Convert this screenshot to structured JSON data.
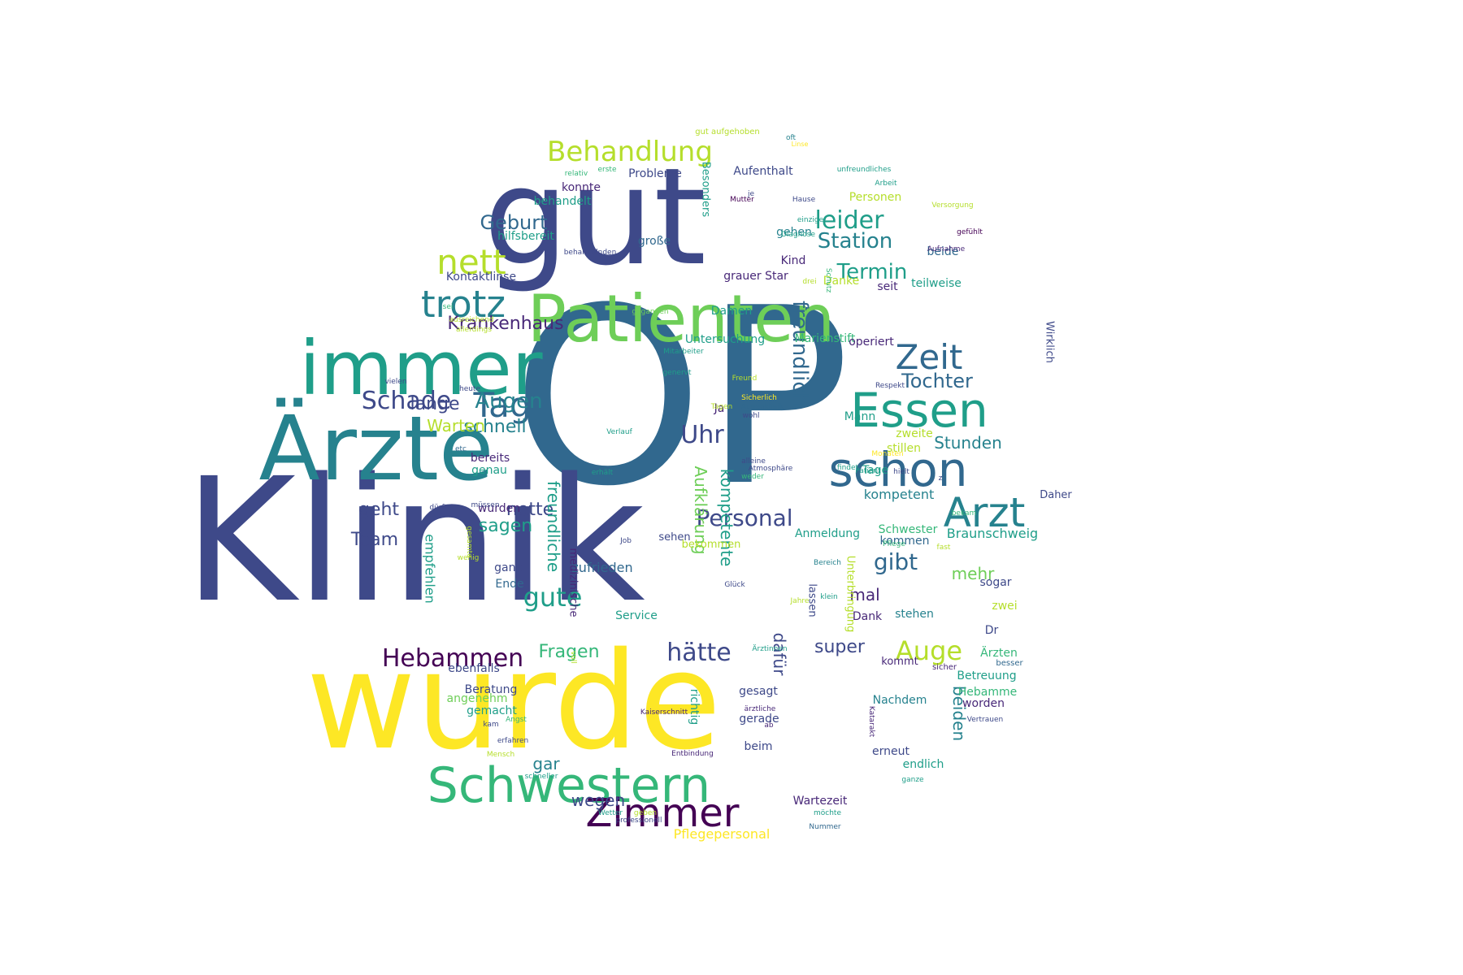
{
  "palette": {
    "d1": "#440154",
    "d2": "#482878",
    "d3": "#3e4989",
    "d4": "#31688e",
    "d5": "#26828e",
    "d6": "#1f9e89",
    "d7": "#35b779",
    "d8": "#6ece58",
    "d9": "#b5de2b",
    "d10": "#fde725"
  },
  "words": [
    {
      "text": "OP",
      "color": "d4"
    },
    {
      "text": "Klinik",
      "color": "d3"
    },
    {
      "text": "gut",
      "color": "d3"
    },
    {
      "text": "wurde",
      "color": "d10"
    },
    {
      "text": "Ärzte",
      "color": "d5"
    },
    {
      "text": "immer",
      "color": "d6"
    },
    {
      "text": "Patienten",
      "color": "d8"
    },
    {
      "text": "Schwestern",
      "color": "d7"
    },
    {
      "text": "schon",
      "color": "d4"
    },
    {
      "text": "Essen",
      "color": "d6"
    },
    {
      "text": "Arzt",
      "color": "d5"
    },
    {
      "text": "Zimmer",
      "color": "d1"
    },
    {
      "text": "trotz",
      "color": "d5"
    },
    {
      "text": "nett",
      "color": "d9"
    },
    {
      "text": "Zeit",
      "color": "d4"
    },
    {
      "text": "Tag",
      "color": "d4"
    },
    {
      "text": "Behandlung",
      "color": "d9"
    },
    {
      "text": "leider",
      "color": "d6"
    },
    {
      "text": "Hebammen",
      "color": "d1"
    },
    {
      "text": "Uhr",
      "color": "d3"
    },
    {
      "text": "Personal",
      "color": "d3"
    },
    {
      "text": "gute",
      "color": "d6"
    },
    {
      "text": "freundlich",
      "color": "d4"
    },
    {
      "text": "Station",
      "color": "d5"
    },
    {
      "text": "Termin",
      "color": "d6"
    },
    {
      "text": "Tochter",
      "color": "d4"
    },
    {
      "text": "Augen",
      "color": "d5"
    },
    {
      "text": "Auge",
      "color": "d9"
    },
    {
      "text": "hätte",
      "color": "d3"
    },
    {
      "text": "Geburt",
      "color": "d4"
    },
    {
      "text": "Krankenhaus",
      "color": "d2"
    },
    {
      "text": "nette",
      "color": "d3"
    },
    {
      "text": "lange",
      "color": "d3"
    },
    {
      "text": "schnell",
      "color": "d5"
    },
    {
      "text": "Fragen",
      "color": "d7"
    },
    {
      "text": "sagen",
      "color": "d6"
    },
    {
      "text": "Warten",
      "color": "d9"
    },
    {
      "text": "gibt",
      "color": "d4"
    },
    {
      "text": "geht",
      "color": "d3"
    },
    {
      "text": "Team",
      "color": "d3"
    },
    {
      "text": "Stunden",
      "color": "d5"
    },
    {
      "text": "Arzt",
      "color": "d5"
    },
    {
      "text": "mehr",
      "color": "d8"
    },
    {
      "text": "mal",
      "color": "d2"
    },
    {
      "text": "super",
      "color": "d3"
    },
    {
      "text": "Aufklärung",
      "color": "d8"
    },
    {
      "text": "freundliche",
      "color": "d6"
    },
    {
      "text": "kompetente",
      "color": "d6"
    },
    {
      "text": "beiden",
      "color": "d5"
    },
    {
      "text": "dafür",
      "color": "d3"
    },
    {
      "text": "zufrieden",
      "color": "d4"
    },
    {
      "text": "empfehlen",
      "color": "d6"
    },
    {
      "text": "Braunschweig",
      "color": "d6"
    },
    {
      "text": "gar",
      "color": "d5"
    },
    {
      "text": "wegen",
      "color": "d3"
    },
    {
      "text": "Pflegepersonal",
      "color": "d10"
    },
    {
      "text": "Wartezeit",
      "color": "d2"
    },
    {
      "text": "kompetent",
      "color": "d5"
    },
    {
      "text": "Marienstift",
      "color": "d7"
    },
    {
      "text": "Untersuchung",
      "color": "d6"
    },
    {
      "text": "operiert",
      "color": "d2"
    },
    {
      "text": "Kind",
      "color": "d2"
    },
    {
      "text": "grauer Star",
      "color": "d2"
    },
    {
      "text": "Damen",
      "color": "d6"
    },
    {
      "text": "seit",
      "color": "d2"
    },
    {
      "text": "teilweise",
      "color": "d6"
    },
    {
      "text": "beide",
      "color": "d4"
    },
    {
      "text": "Aufenthalt",
      "color": "d3"
    },
    {
      "text": "Probleme",
      "color": "d3"
    },
    {
      "text": "konnte",
      "color": "d2"
    },
    {
      "text": "behandelt",
      "color": "d6"
    },
    {
      "text": "hilfsbereit",
      "color": "d6"
    },
    {
      "text": "große",
      "color": "d4"
    },
    {
      "text": "Kontaktlinse",
      "color": "d3"
    },
    {
      "text": "gehen",
      "color": "d5"
    },
    {
      "text": "Personen",
      "color": "d9"
    },
    {
      "text": "Danke",
      "color": "d9"
    },
    {
      "text": "Mann",
      "color": "d6"
    },
    {
      "text": "Ja",
      "color": "d2"
    },
    {
      "text": "zweite",
      "color": "d9"
    },
    {
      "text": "stillen",
      "color": "d9"
    },
    {
      "text": "Tage",
      "color": "d6"
    },
    {
      "text": "bereits",
      "color": "d2"
    },
    {
      "text": "genau",
      "color": "d6"
    },
    {
      "text": "wurden",
      "color": "d2"
    },
    {
      "text": "ganz",
      "color": "d3"
    },
    {
      "text": "Ende",
      "color": "d4"
    },
    {
      "text": "Service",
      "color": "d6"
    },
    {
      "text": "Dank",
      "color": "d2"
    },
    {
      "text": "stehen",
      "color": "d5"
    },
    {
      "text": "sehen",
      "color": "d3"
    },
    {
      "text": "bekommen",
      "color": "d9"
    },
    {
      "text": "Anmeldung",
      "color": "d6"
    },
    {
      "text": "Schwester",
      "color": "d7"
    },
    {
      "text": "kommen",
      "color": "d4"
    },
    {
      "text": "sogar",
      "color": "d3"
    },
    {
      "text": "zwei",
      "color": "d9"
    },
    {
      "text": "Dr",
      "color": "d3"
    },
    {
      "text": "Ärzten",
      "color": "d7"
    },
    {
      "text": "besser",
      "color": "d4"
    },
    {
      "text": "Betreuung",
      "color": "d6"
    },
    {
      "text": "Hebamme",
      "color": "d7"
    },
    {
      "text": "worden",
      "color": "d2"
    },
    {
      "text": "sicher",
      "color": "d2"
    },
    {
      "text": "kommt",
      "color": "d2"
    },
    {
      "text": "endlich",
      "color": "d6"
    },
    {
      "text": "erneut",
      "color": "d3"
    },
    {
      "text": "Nachdem",
      "color": "d5"
    },
    {
      "text": "gesagt",
      "color": "d3"
    },
    {
      "text": "gerade",
      "color": "d3"
    },
    {
      "text": "beim",
      "color": "d3"
    },
    {
      "text": "richtig",
      "color": "d6"
    },
    {
      "text": "Beratung",
      "color": "d3"
    },
    {
      "text": "ebenfalls",
      "color": "d3"
    },
    {
      "text": "angenehm",
      "color": "d8"
    },
    {
      "text": "gemacht",
      "color": "d6"
    },
    {
      "text": "Daher",
      "color": "d3"
    },
    {
      "text": "medizinische",
      "color": "d2"
    },
    {
      "text": "lassen",
      "color": "d3"
    },
    {
      "text": "Unterbringung",
      "color": "d9"
    },
    {
      "text": "Besonders",
      "color": "d6"
    },
    {
      "text": "Wirklich",
      "color": "d3"
    },
    {
      "text": "gut aufgehoben",
      "color": "d9"
    },
    {
      "text": "oft",
      "color": "d5"
    },
    {
      "text": "Linse",
      "color": "d10"
    },
    {
      "text": "unfreundliches",
      "color": "d6"
    },
    {
      "text": "Arbeit",
      "color": "d6"
    },
    {
      "text": "Versorgung",
      "color": "d9"
    },
    {
      "text": "gefühlt",
      "color": "d1"
    },
    {
      "text": "relativ",
      "color": "d7"
    },
    {
      "text": "erste",
      "color": "d7"
    },
    {
      "text": "Mutter",
      "color": "d1"
    },
    {
      "text": "je",
      "color": "d3"
    },
    {
      "text": "Hause",
      "color": "d3"
    },
    {
      "text": "einzige",
      "color": "d6"
    },
    {
      "text": "Diagnose",
      "color": "d6"
    },
    {
      "text": "Aufnahme",
      "color": "d2"
    },
    {
      "text": "behandelnden",
      "color": "d3"
    },
    {
      "text": "drei",
      "color": "d9"
    },
    {
      "text": "Schutz",
      "color": "d7"
    },
    {
      "text": "sei",
      "color": "d7"
    },
    {
      "text": "gegangen",
      "color": "d8"
    },
    {
      "text": "ausreichend",
      "color": "d9"
    },
    {
      "text": "allerdings",
      "color": "d9"
    },
    {
      "text": "Mitarbeiter",
      "color": "d6"
    },
    {
      "text": "genervt",
      "color": "d6"
    },
    {
      "text": "vielen",
      "color": "d3"
    },
    {
      "text": "heute",
      "color": "d3"
    },
    {
      "text": "Freund",
      "color": "d9"
    },
    {
      "text": "Tagen",
      "color": "d9"
    },
    {
      "text": "Sicherlich",
      "color": "d10"
    },
    {
      "text": "Respekt",
      "color": "d3"
    },
    {
      "text": "Augenklinik",
      "color": "d4"
    },
    {
      "text": "wohl",
      "color": "d3"
    },
    {
      "text": "Verlauf",
      "color": "d6"
    },
    {
      "text": "alleine",
      "color": "d3"
    },
    {
      "text": "Atmosphäre",
      "color": "d3"
    },
    {
      "text": "weder",
      "color": "d7"
    },
    {
      "text": "Monaten",
      "color": "d10"
    },
    {
      "text": "Patient",
      "color": "d6"
    },
    {
      "text": "hielt",
      "color": "d3"
    },
    {
      "text": "findet",
      "color": "d6"
    },
    {
      "text": "z",
      "color": "d3"
    },
    {
      "text": "etc",
      "color": "d4"
    },
    {
      "text": "erhält",
      "color": "d6"
    },
    {
      "text": "dürfte",
      "color": "d3"
    },
    {
      "text": "bekam",
      "color": "d7"
    },
    {
      "text": "müssen",
      "color": "d3"
    },
    {
      "text": "gesamte",
      "color": "d9"
    },
    {
      "text": "Job",
      "color": "d3"
    },
    {
      "text": "fast",
      "color": "d9"
    },
    {
      "text": "wenig",
      "color": "d9"
    },
    {
      "text": "Pflege",
      "color": "d7"
    },
    {
      "text": "Bereich",
      "color": "d5"
    },
    {
      "text": "klein",
      "color": "d6"
    },
    {
      "text": "Glück",
      "color": "d3"
    },
    {
      "text": "Ärztinnen",
      "color": "d6"
    },
    {
      "text": "Jahre",
      "color": "d9"
    },
    {
      "text": "voll",
      "color": "d9"
    },
    {
      "text": "Katarakt",
      "color": "d2"
    },
    {
      "text": "Kaiserschnitt",
      "color": "d2"
    },
    {
      "text": "ärztliche",
      "color": "d2"
    },
    {
      "text": "ab",
      "color": "d2"
    },
    {
      "text": "Vertrauen",
      "color": "d3"
    },
    {
      "text": "Angst",
      "color": "d7"
    },
    {
      "text": "kam",
      "color": "d3"
    },
    {
      "text": "erfahren",
      "color": "d3"
    },
    {
      "text": "Mensch",
      "color": "d9"
    },
    {
      "text": "schneller",
      "color": "d6"
    },
    {
      "text": "Entbindung",
      "color": "d2"
    },
    {
      "text": "ganze",
      "color": "d6"
    },
    {
      "text": "Wetter",
      "color": "d6"
    },
    {
      "text": "geben",
      "color": "d9"
    },
    {
      "text": "professionell",
      "color": "d3"
    },
    {
      "text": "möchte",
      "color": "d6"
    },
    {
      "text": "Nummer",
      "color": "d4"
    },
    {
      "text": "Schade",
      "color": "d3"
    },
    {
      "text": "rechten",
      "color": "d9"
    },
    {
      "text": "Eingriff",
      "color": "d2"
    },
    {
      "text": "Regel",
      "color": "d9"
    },
    {
      "text": "ä",
      "color": "d2"
    }
  ]
}
